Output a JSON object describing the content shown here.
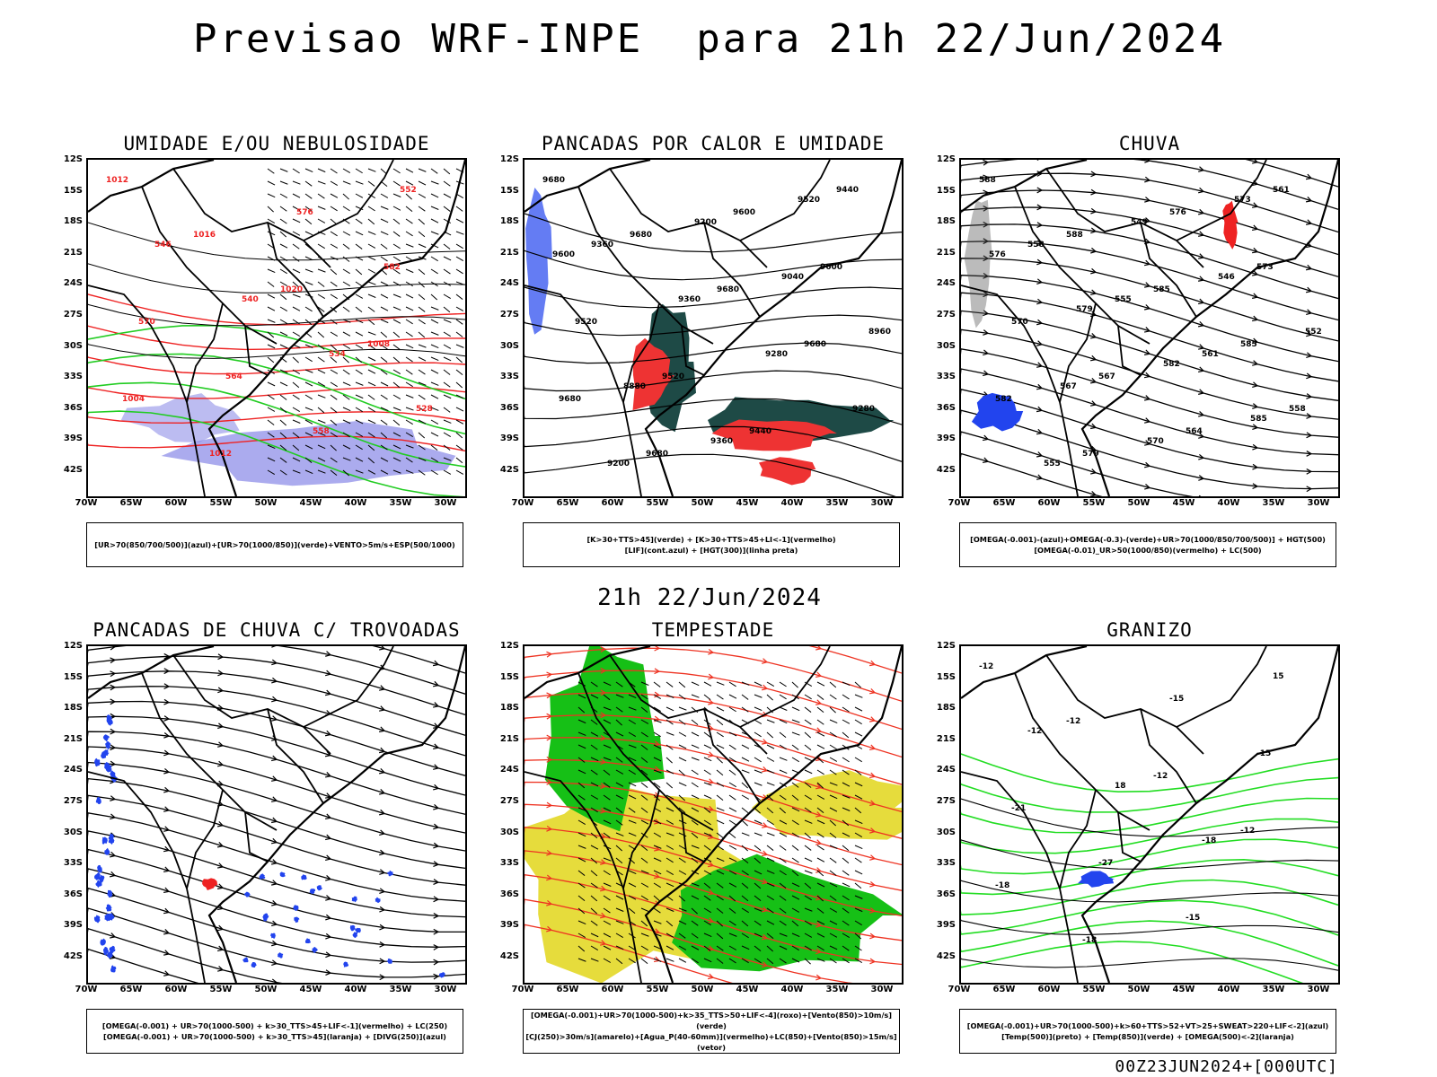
{
  "header": {
    "title": "Previsao WRF-INPE  para 21h 22/Jun/2024"
  },
  "subheader": {
    "time": "21h 22/Jun/2024"
  },
  "footer": {
    "run": "00Z23JUN2024+[000UTC]"
  },
  "axes": {
    "lat_ticks": [
      "12S",
      "15S",
      "18S",
      "21S",
      "24S",
      "27S",
      "30S",
      "33S",
      "36S",
      "39S",
      "42S"
    ],
    "lon_ticks": [
      "70W",
      "65W",
      "60W",
      "55W",
      "50W",
      "45W",
      "40W",
      "35W",
      "30W"
    ]
  },
  "panels": [
    {
      "title": "UMIDADE E/OU NEBULOSIDADE",
      "legend": [
        "[UR>70(850/700/500)](azul)+[UR>70(1000/850)](verde)+VENTO>5m/s+ESP(500/1000)"
      ],
      "colors": {
        "fill": "#8f8fe8",
        "green": "#22cc22",
        "red": "#ee2222"
      },
      "contour_labels": [
        "1012",
        "1016",
        "1020",
        "1008",
        "1004",
        "1012",
        "576",
        "582",
        "570",
        "564",
        "558",
        "552",
        "546",
        "540",
        "534",
        "528"
      ]
    },
    {
      "title": "PANCADAS POR CALOR E UMIDADE",
      "legend": [
        "[K>30+TTS>45](verde) + [K>30+TTS>45+LI<-1](vermelho)",
        "[LIF](cont.azul) + [HGT(300)](linha preta)"
      ],
      "colors": {
        "dark": "#1e4a46",
        "red": "#ee3333",
        "blue": "#2244ee"
      },
      "contour_labels": [
        "9680",
        "9680",
        "9680",
        "9680",
        "9680",
        "9680",
        "9600",
        "9600",
        "9520",
        "9520",
        "9440",
        "9440",
        "9360",
        "9360",
        "9280",
        "9280",
        "9200",
        "9200",
        "9040",
        "8960",
        "8880",
        "9360",
        "9520",
        "9600"
      ]
    },
    {
      "title": "CHUVA",
      "legend": [
        "[OMEGA(-0.001)-(azul)+OMEGA(-0.3)-(verde)+UR>70(1000/850/700/500)] + HGT(500)",
        "[OMEGA(-0.01)_UR>50(1000/850)(vermelho) + LC(500)"
      ],
      "colors": {
        "blue": "#2244ee",
        "red": "#ee2222"
      },
      "contour_labels": [
        "588",
        "588",
        "585",
        "585",
        "582",
        "579",
        "576",
        "573",
        "570",
        "567",
        "564",
        "561",
        "558",
        "555",
        "561",
        "558",
        "555",
        "549",
        "546",
        "552",
        "567",
        "570",
        "573",
        "576",
        "579",
        "582",
        "585"
      ]
    },
    {
      "title": "PANCADAS DE CHUVA C/ TROVOADAS",
      "legend": [
        "[OMEGA(-0.001) + UR>70(1000-500) + k>30_TTS>45+LIF<-1](vermelho) + LC(250)",
        "[OMEGA(-0.001) + UR>70(1000-500) + k>30_TTS>45](laranja) + [DIVG(250)](azul)"
      ],
      "colors": {
        "blue": "#2244ee",
        "red": "#ee2222"
      }
    },
    {
      "title": "TEMPESTADE",
      "legend": [
        "[OMEGA(-0.001)+UR>70(1000-500)+k>35_TTS>50+LIF<-4](roxo)+[Vento(850)>10m/s](verde)",
        "[CJ(250)>30m/s](amarelo)+[Agua_P(40-60mm)](vermelho)+LC(850)+[Vento(850)>15m/s](vetor)"
      ],
      "colors": {
        "yellow": "#e6dc3c",
        "green": "#16c016",
        "red": "#ee3322"
      }
    },
    {
      "title": "GRANIZO",
      "legend": [
        "[OMEGA(-0.001)+UR>70(1000-500)+k>60+TTS>52+VT>25+SWEAT>220+LIF<-2](azul)",
        "[Temp(500)](preto) + [Temp(850)](verde) + [OMEGA(500)<-2](laranja)"
      ],
      "colors": {
        "green": "#22dd22",
        "blue": "#2244ee"
      },
      "contour_labels": [
        "-12",
        "-12",
        "-12",
        "-12",
        "-18",
        "-18",
        "-15",
        "-15",
        "-21",
        "-27",
        "-15",
        "15",
        "-12",
        "18",
        "-18"
      ]
    }
  ]
}
